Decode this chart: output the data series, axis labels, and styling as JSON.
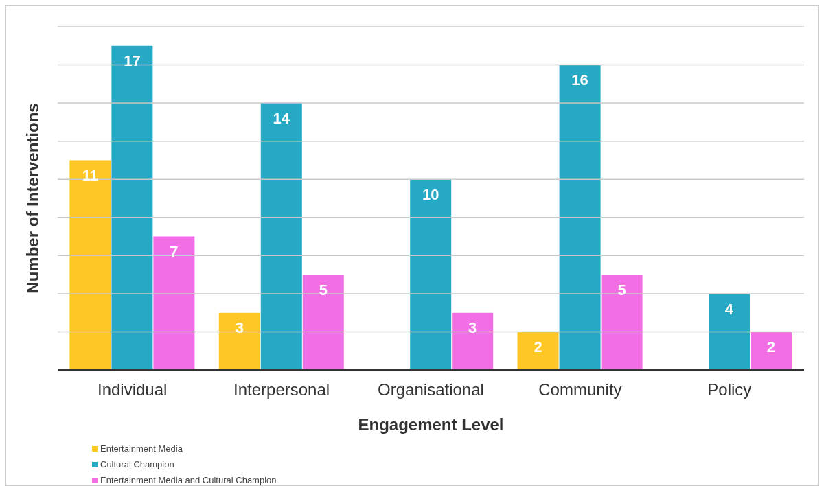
{
  "chart_data": {
    "type": "bar",
    "xlabel": "Engagement Level",
    "ylabel": "Number of Interventions",
    "categories": [
      "Individual",
      "Interpersonal",
      "Organisational",
      "Community",
      "Policy"
    ],
    "series": [
      {
        "name": "Entertainment Media",
        "color": "#ffc726",
        "values": [
          11,
          3,
          null,
          2,
          null
        ]
      },
      {
        "name": "Cultural Champion",
        "color": "#26a9c4",
        "values": [
          17,
          14,
          10,
          16,
          4
        ]
      },
      {
        "name": "Entertainment Media and Cultural Champion",
        "color": "#f26ee5",
        "values": [
          7,
          5,
          3,
          5,
          2
        ]
      }
    ],
    "ylim": [
      0,
      18
    ],
    "yticks": [
      {
        "value": 0,
        "label": null
      },
      {
        "value": 2,
        "label": null
      },
      {
        "value": 4,
        "label": null
      },
      {
        "value": 6,
        "label": null
      },
      {
        "value": 8,
        "label": null
      },
      {
        "value": 10,
        "label": null
      },
      {
        "value": 12,
        "label": null
      },
      {
        "value": 14,
        "label": null
      },
      {
        "value": 16,
        "label": null
      },
      {
        "value": 18,
        "label": null
      }
    ],
    "grid": "y",
    "tick_labels": "x",
    "data_labels": true,
    "legend": "bottom left"
  }
}
